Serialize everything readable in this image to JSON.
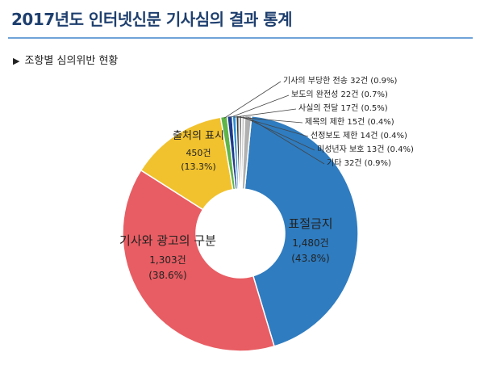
{
  "header": {
    "title": "2017년도 인터넷신문 기사심의 결과 통계",
    "subtitle": "조항별 심의위반 현황"
  },
  "chart_data": {
    "type": "pie",
    "donut": true,
    "slices": [
      {
        "name": "표절금지",
        "count": "1,480건",
        "percent": "(43.8%)",
        "value": 43.8,
        "color": "#2f7cc0"
      },
      {
        "name": "기사와 광고의 구분",
        "count": "1,303건",
        "percent": "(38.6%)",
        "value": 38.6,
        "color": "#e85d63"
      },
      {
        "name": "출처의 표시",
        "count": "450건",
        "percent": "(13.3%)",
        "value": 13.3,
        "color": "#f1c22e"
      },
      {
        "name": "",
        "value": 0.9,
        "color": "#5fb548"
      },
      {
        "name": "",
        "value": 0.7,
        "color": "#1f3b8c"
      },
      {
        "name": "",
        "value": 0.5,
        "color": "#2c8fd6"
      },
      {
        "name": "",
        "value": 0.4,
        "color": "#3a3a3a"
      },
      {
        "name": "",
        "value": 0.4,
        "color": "#8a8a8a"
      },
      {
        "name": "",
        "value": 0.4,
        "color": "#c8c8c8"
      },
      {
        "name": "",
        "value": 0.9,
        "color": "#b0b0b0"
      }
    ],
    "small_labels": [
      "기사의 부당한 전송 32건 (0.9%)",
      "보도의 완전성 22건 (0.7%)",
      "사실의 전달 17건 (0.5%)",
      "제목의 제한 15건 (0.4%)",
      "선정보도 제한 14건 (0.4%)",
      "미성년자 보호 13건 (0.4%)",
      "기타 32건 (0.9%)"
    ]
  }
}
